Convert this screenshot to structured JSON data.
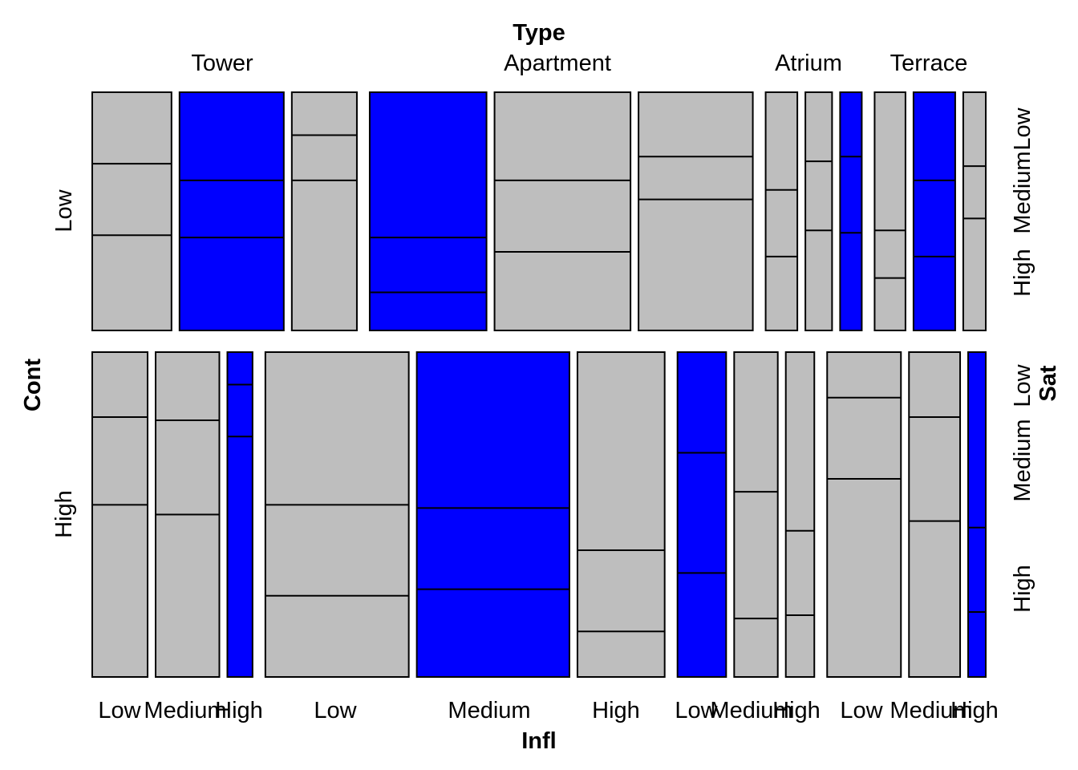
{
  "chart_data": {
    "type": "mosaic",
    "title": "",
    "variables": {
      "type": {
        "label": "Type",
        "levels": [
          "Tower",
          "Apartment",
          "Atrium",
          "Terrace"
        ]
      },
      "cont": {
        "label": "Cont",
        "levels": [
          "Low",
          "High"
        ]
      },
      "infl": {
        "label": "Infl",
        "levels": [
          "Low",
          "Medium",
          "High"
        ]
      },
      "sat": {
        "label": "Sat",
        "levels": [
          "Low",
          "Medium",
          "High"
        ]
      }
    },
    "colors": {
      "highlight": "#0000ff",
      "default": "#bebebe",
      "border": "#000000"
    },
    "cells": [
      {
        "type": "Tower",
        "cont": "Low",
        "infl": "Low",
        "highlighted": false,
        "share": 0.095,
        "sat": [
          0.3,
          0.3,
          0.4
        ]
      },
      {
        "type": "Tower",
        "cont": "Low",
        "infl": "Medium",
        "highlighted": true,
        "share": 0.125,
        "sat": [
          0.37,
          0.24,
          0.39
        ]
      },
      {
        "type": "Tower",
        "cont": "Low",
        "infl": "High",
        "highlighted": false,
        "share": 0.078,
        "sat": [
          0.18,
          0.19,
          0.63
        ]
      },
      {
        "type": "Apartment",
        "cont": "Low",
        "infl": "Low",
        "highlighted": true,
        "share": 0.14,
        "sat": [
          0.61,
          0.23,
          0.16
        ]
      },
      {
        "type": "Apartment",
        "cont": "Low",
        "infl": "Medium",
        "highlighted": false,
        "share": 0.163,
        "sat": [
          0.37,
          0.3,
          0.33
        ]
      },
      {
        "type": "Apartment",
        "cont": "Low",
        "infl": "High",
        "highlighted": false,
        "share": 0.137,
        "sat": [
          0.27,
          0.18,
          0.55
        ]
      },
      {
        "type": "Atrium",
        "cont": "Low",
        "infl": "Low",
        "highlighted": false,
        "share": 0.038,
        "sat": [
          0.41,
          0.28,
          0.31
        ]
      },
      {
        "type": "Atrium",
        "cont": "Low",
        "infl": "Medium",
        "highlighted": false,
        "share": 0.032,
        "sat": [
          0.29,
          0.29,
          0.42
        ]
      },
      {
        "type": "Atrium",
        "cont": "Low",
        "infl": "High",
        "highlighted": true,
        "share": 0.026,
        "sat": [
          0.27,
          0.32,
          0.41
        ]
      },
      {
        "type": "Terrace",
        "cont": "Low",
        "infl": "Low",
        "highlighted": false,
        "share": 0.037,
        "sat": [
          0.58,
          0.2,
          0.22
        ]
      },
      {
        "type": "Terrace",
        "cont": "Low",
        "infl": "Medium",
        "highlighted": true,
        "share": 0.05,
        "sat": [
          0.37,
          0.32,
          0.31
        ]
      },
      {
        "type": "Terrace",
        "cont": "Low",
        "infl": "High",
        "highlighted": false,
        "share": 0.027,
        "sat": [
          0.31,
          0.22,
          0.47
        ]
      },
      {
        "type": "Tower",
        "cont": "High",
        "infl": "Low",
        "highlighted": false,
        "share": 0.066,
        "sat": [
          0.2,
          0.27,
          0.53
        ]
      },
      {
        "type": "Tower",
        "cont": "High",
        "infl": "Medium",
        "highlighted": false,
        "share": 0.076,
        "sat": [
          0.21,
          0.29,
          0.5
        ]
      },
      {
        "type": "Tower",
        "cont": "High",
        "infl": "High",
        "highlighted": true,
        "share": 0.03,
        "sat": [
          0.1,
          0.16,
          0.74
        ]
      },
      {
        "type": "Apartment",
        "cont": "High",
        "infl": "Low",
        "highlighted": false,
        "share": 0.171,
        "sat": [
          0.47,
          0.28,
          0.25
        ]
      },
      {
        "type": "Apartment",
        "cont": "High",
        "infl": "Medium",
        "highlighted": true,
        "share": 0.182,
        "sat": [
          0.48,
          0.25,
          0.27
        ]
      },
      {
        "type": "Apartment",
        "cont": "High",
        "infl": "High",
        "highlighted": false,
        "share": 0.104,
        "sat": [
          0.61,
          0.25,
          0.14
        ]
      },
      {
        "type": "Atrium",
        "cont": "High",
        "infl": "Low",
        "highlighted": true,
        "share": 0.058,
        "sat": [
          0.31,
          0.37,
          0.32
        ]
      },
      {
        "type": "Atrium",
        "cont": "High",
        "infl": "Medium",
        "highlighted": false,
        "share": 0.052,
        "sat": [
          0.43,
          0.39,
          0.18
        ]
      },
      {
        "type": "Atrium",
        "cont": "High",
        "infl": "High",
        "highlighted": false,
        "share": 0.034,
        "sat": [
          0.55,
          0.26,
          0.19
        ]
      },
      {
        "type": "Terrace",
        "cont": "High",
        "infl": "Low",
        "highlighted": false,
        "share": 0.088,
        "sat": [
          0.14,
          0.25,
          0.61
        ]
      },
      {
        "type": "Terrace",
        "cont": "High",
        "infl": "Medium",
        "highlighted": false,
        "share": 0.061,
        "sat": [
          0.2,
          0.32,
          0.48
        ]
      },
      {
        "type": "Terrace",
        "cont": "High",
        "infl": "High",
        "highlighted": true,
        "share": 0.021,
        "sat": [
          0.54,
          0.26,
          0.2
        ]
      }
    ]
  }
}
